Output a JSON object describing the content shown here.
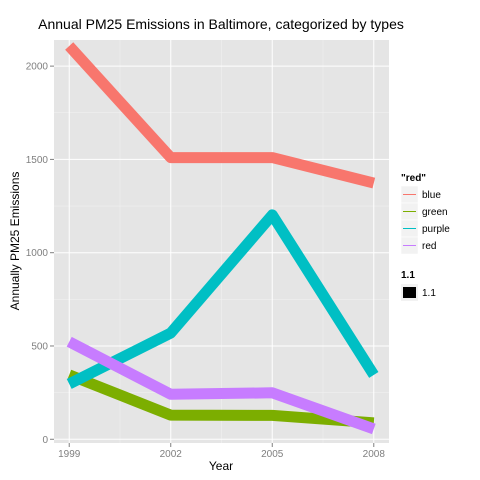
{
  "chart_data": {
    "type": "line",
    "title": "Annual PM25 Emissions in Baltimore, categorized by types",
    "xlabel": "Year",
    "ylabel": "Annually PM25 Emissions",
    "x": [
      1999,
      2002,
      2005,
      2008
    ],
    "x_ticks": [
      "1999",
      "2002",
      "2005",
      "2008"
    ],
    "y_ticks": [
      "0",
      "500",
      "1000",
      "1500",
      "2000"
    ],
    "ylim": [
      -20,
      2140
    ],
    "grid": true,
    "legend_placement": "right",
    "series": [
      {
        "name": "blue",
        "color": "#F8766D",
        "values": [
          2107.6,
          1509.5,
          1509.5,
          1373.2
        ]
      },
      {
        "name": "green",
        "color": "#7CAE00",
        "values": [
          344.98,
          129.75,
          128.01,
          88.28
        ]
      },
      {
        "name": "purple",
        "color": "#00BFC4",
        "values": [
          296.8,
          569.3,
          1202.5,
          345.0
        ]
      },
      {
        "name": "red",
        "color": "#C77CFF",
        "values": [
          522.9,
          240.8,
          248.9,
          55.8
        ]
      }
    ],
    "legend": {
      "colour_title": "\"red\"",
      "size_title": "1.1",
      "size_label": "1.1"
    }
  }
}
